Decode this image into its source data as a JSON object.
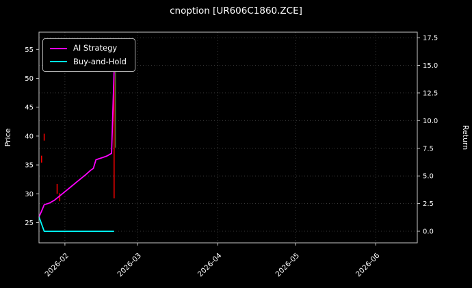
{
  "title": "cnoption [UR606C1860.ZCE]",
  "legend": {
    "items": [
      {
        "label": "AI Strategy",
        "color": "#ff00ff"
      },
      {
        "label": "Buy-and-Hold",
        "color": "#00ffff"
      }
    ]
  },
  "colors": {
    "background": "#000000",
    "text": "#ffffff",
    "spine": "#c8c8c8",
    "grid": "#4a4a4a"
  },
  "chart_data": {
    "type": "line",
    "title": "cnoption [UR606C1860.ZCE]",
    "grid": {
      "show": true,
      "style": "dotted"
    },
    "legend_position": "upper left",
    "x_axis": {
      "tick_labels": [
        "2026-02",
        "2026-03",
        "2026-04",
        "2026-05",
        "2026-06"
      ],
      "tick_dates": [
        "2026-02-01",
        "2026-03-01",
        "2026-04-01",
        "2026-05-01",
        "2026-06-01"
      ],
      "range": [
        "2026-01-22",
        "2026-06-17"
      ]
    },
    "y_left": {
      "label": "Price",
      "ticks": [
        25,
        30,
        35,
        40,
        45,
        50,
        55
      ],
      "lim": [
        21.5,
        58
      ]
    },
    "y_right": {
      "label": "Return",
      "ticks": [
        0.0,
        2.5,
        5.0,
        7.5,
        10.0,
        12.5,
        15.0,
        17.5
      ],
      "lim": [
        -1.05,
        18.0
      ]
    },
    "series": [
      {
        "name": "AI Strategy",
        "color": "#ff00ff",
        "axis": "price",
        "points": [
          [
            "2026-01-22",
            26.0
          ],
          [
            "2026-01-23",
            27.0
          ],
          [
            "2026-01-24",
            28.1
          ],
          [
            "2026-01-26",
            28.4
          ],
          [
            "2026-01-28",
            28.9
          ],
          [
            "2026-01-31",
            30.0
          ],
          [
            "2026-02-03",
            31.1
          ],
          [
            "2026-02-06",
            32.2
          ],
          [
            "2026-02-09",
            33.3
          ],
          [
            "2026-02-11",
            34.1
          ],
          [
            "2026-02-12",
            34.4
          ],
          [
            "2026-02-13",
            35.9
          ],
          [
            "2026-02-15",
            36.2
          ],
          [
            "2026-02-17",
            36.5
          ],
          [
            "2026-02-19",
            37.0
          ],
          [
            "2026-02-20",
            51.3
          ]
        ]
      },
      {
        "name": "Buy-and-Hold",
        "color": "#00ffff",
        "axis": "price",
        "points": [
          [
            "2026-01-22",
            26.0
          ],
          [
            "2026-01-24",
            23.5
          ],
          [
            "2026-02-20",
            23.5
          ]
        ]
      }
    ],
    "candles": [
      {
        "date": "2026-01-23",
        "low": 35.4,
        "high": 36.6,
        "color": "#ff0000",
        "offset": 0
      },
      {
        "date": "2026-01-24",
        "low": 39.2,
        "high": 40.4,
        "color": "#ff0000",
        "offset": 0
      },
      {
        "date": "2026-01-29",
        "low": 30.0,
        "high": 31.7,
        "color": "#ff0000",
        "offset": 0
      },
      {
        "date": "2026-01-30",
        "low": 28.7,
        "high": 30.1,
        "color": "#ff0000",
        "offset": 0
      },
      {
        "date": "2026-02-20",
        "low": 29.2,
        "high": 51.5,
        "color": "#ff0000",
        "offset": 0
      },
      {
        "date": "2026-02-20",
        "low": 38.0,
        "high": 51.5,
        "color": "#556b2f",
        "offset": 2
      }
    ]
  }
}
